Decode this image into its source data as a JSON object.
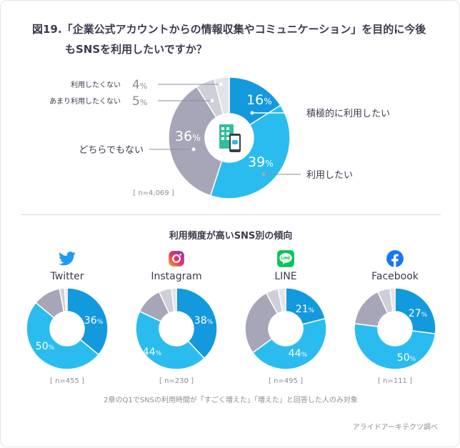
{
  "title": {
    "line1": "図19.「企業公式アカウントからの情報収集やコミュニケーション」を目的に今後",
    "line2": "もSNSを利用したいですか？"
  },
  "colors": {
    "dark_blue": "#1399dd",
    "light_blue": "#2bbcef",
    "gray": "#a7a6b8",
    "light_gray": "#cfcfda",
    "lighter_gray": "#e3e3ea",
    "label_gray": "#8c8c98"
  },
  "main_chart_labels": {
    "definitely_want": "積極的に利用したい",
    "want": "利用したい",
    "neither": "どちらでもない",
    "not_much": "あまり利用したくない",
    "dont_want": "利用したくない",
    "pct_16": "16",
    "pct_39": "39",
    "pct_36": "36",
    "pct_5": "5",
    "pct_4": "4",
    "pct_unit": "%",
    "n": "[ n=4,069 ]",
    "center_icon": "office-building-smartphone-icon"
  },
  "sub_title": "利用頻度が高いSNS別の傾向",
  "sns_labels": [
    {
      "name": "Twitter",
      "icon": "twitter-bird-icon",
      "n": "[ n=455 ]",
      "pct_a": "36",
      "pct_b": "50"
    },
    {
      "name": "Instagram",
      "icon": "instagram-icon",
      "n": "[ n=230 ]",
      "pct_a": "38",
      "pct_b": "44"
    },
    {
      "name": "LINE",
      "icon": "line-icon",
      "n": "[ n=495 ]",
      "pct_a": "21",
      "pct_b": "44"
    },
    {
      "name": "Facebook",
      "icon": "facebook-icon",
      "n": "[ n=111 ]",
      "pct_a": "27",
      "pct_b": "50"
    }
  ],
  "footnote": "2章のQ1でSNSの利用時間が「すごく増えた」「増えた」と回答した人のみ対象",
  "credit": "アライドアーキテクツ調べ",
  "chart_data": [
    {
      "type": "pie",
      "title": "「企業公式アカウントからの情報収集やコミュニケーション」を目的に今後もSNSを利用したいですか？",
      "categories": [
        "積極的に利用したい",
        "利用したい",
        "どちらでもない",
        "あまり利用したくない",
        "利用したくない"
      ],
      "values": [
        16,
        39,
        36,
        5,
        4
      ],
      "unit": "%",
      "n": "n=4,069"
    },
    {
      "type": "pie",
      "title": "Twitter",
      "categories": [
        "積極的に利用したい",
        "利用したい",
        "どちらでもない",
        "あまり利用したくない",
        "利用したくない"
      ],
      "values": [
        36,
        50,
        11,
        2,
        1
      ],
      "unit": "%",
      "n": "n=455"
    },
    {
      "type": "pie",
      "title": "Instagram",
      "categories": [
        "積極的に利用したい",
        "利用したい",
        "どちらでもない",
        "あまり利用したくない",
        "利用したくない"
      ],
      "values": [
        38,
        44,
        11,
        5,
        2
      ],
      "unit": "%",
      "n": "n=230"
    },
    {
      "type": "pie",
      "title": "LINE",
      "categories": [
        "積極的に利用したい",
        "利用したい",
        "どちらでもない",
        "あまり利用したくない",
        "利用したくない"
      ],
      "values": [
        21,
        44,
        27,
        5,
        3
      ],
      "unit": "%",
      "n": "n=495"
    },
    {
      "type": "pie",
      "title": "Facebook",
      "categories": [
        "積極的に利用したい",
        "利用したい",
        "どちらでもない",
        "あまり利用したくない",
        "利用したくない"
      ],
      "values": [
        27,
        50,
        16,
        5,
        2
      ],
      "unit": "%",
      "n": "n=111"
    }
  ]
}
